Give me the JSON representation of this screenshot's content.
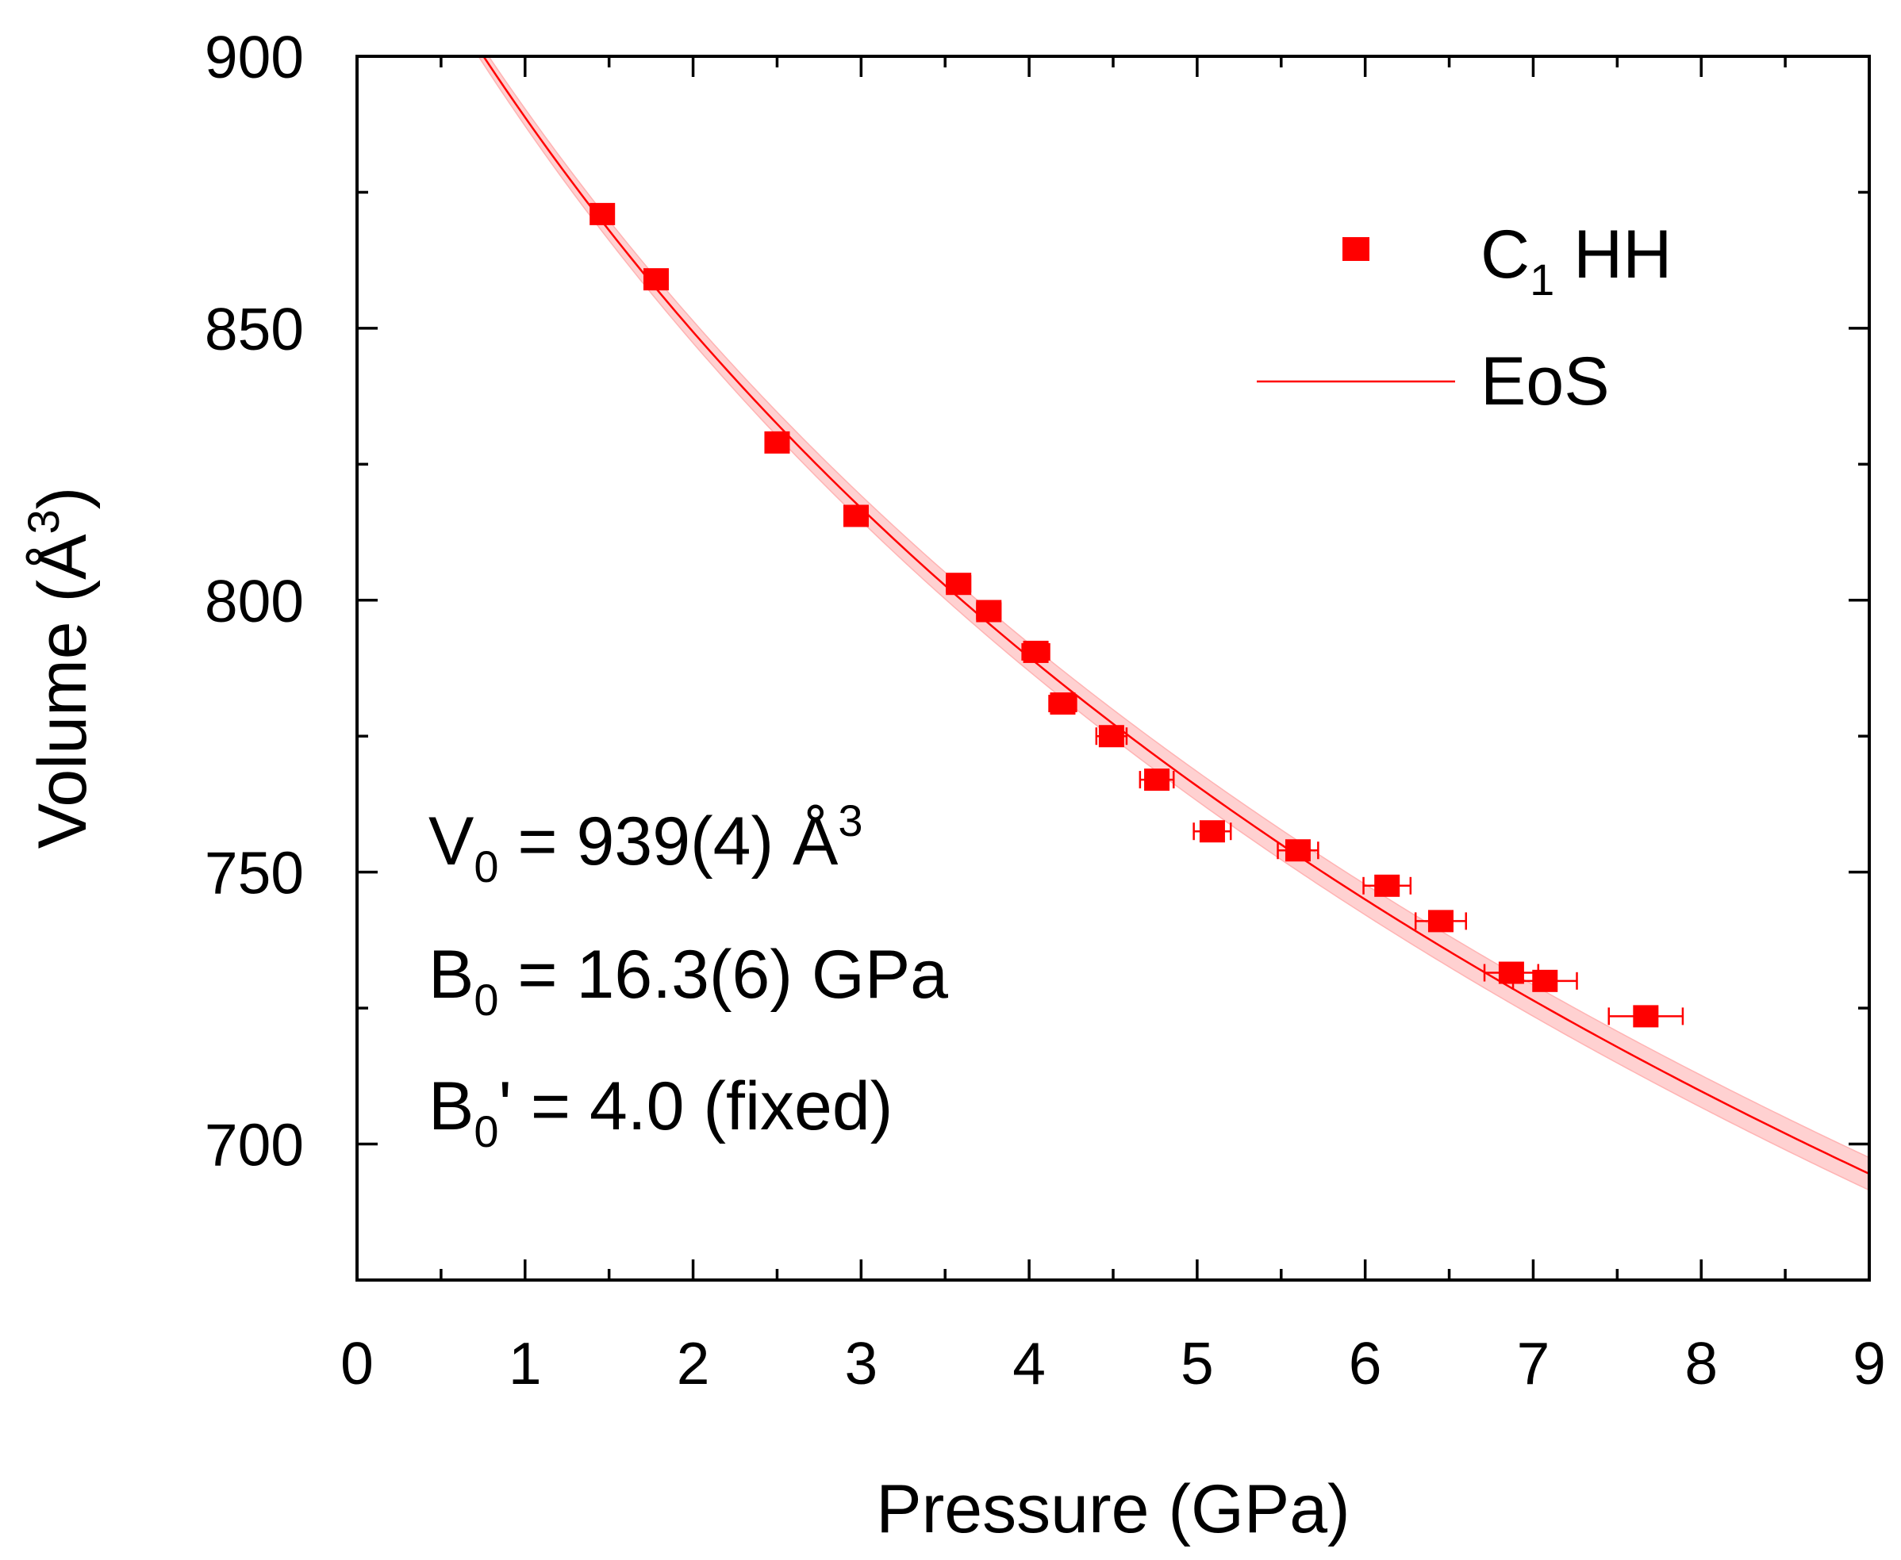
{
  "chart_data": {
    "type": "scatter",
    "title": "",
    "xlabel": "Pressure (GPa)",
    "ylabel": {
      "main": "Volume (Å",
      "sup": "3",
      "close": ")"
    },
    "xlim": [
      0,
      9
    ],
    "ylim": [
      675,
      900
    ],
    "x_ticks": [
      0,
      1,
      2,
      3,
      4,
      5,
      6,
      7,
      8,
      9
    ],
    "y_ticks": [
      700,
      750,
      800,
      850,
      900
    ],
    "legend_position": "top-right",
    "series": [
      {
        "name": "C1 HH",
        "legend_label": {
          "main": "C",
          "sub": "1",
          "rest": " HH"
        },
        "kind": "scatter",
        "marker": "square",
        "color": "#ff0000",
        "points": [
          {
            "x": 1.46,
            "y": 871.0,
            "xerr": 0.05
          },
          {
            "x": 1.78,
            "y": 859.0,
            "xerr": 0.05
          },
          {
            "x": 2.5,
            "y": 829.0,
            "xerr": 0.06
          },
          {
            "x": 2.97,
            "y": 815.5,
            "xerr": 0.06
          },
          {
            "x": 3.58,
            "y": 803.0,
            "xerr": 0.07
          },
          {
            "x": 3.76,
            "y": 798.0,
            "xerr": 0.07
          },
          {
            "x": 4.04,
            "y": 790.5,
            "xerr": 0.08
          },
          {
            "x": 4.2,
            "y": 781.0,
            "xerr": 0.08
          },
          {
            "x": 4.49,
            "y": 775.0,
            "xerr": 0.09
          },
          {
            "x": 4.76,
            "y": 767.0,
            "xerr": 0.1
          },
          {
            "x": 5.09,
            "y": 757.5,
            "xerr": 0.11
          },
          {
            "x": 5.6,
            "y": 754.0,
            "xerr": 0.12
          },
          {
            "x": 6.13,
            "y": 747.5,
            "xerr": 0.14
          },
          {
            "x": 6.45,
            "y": 741.0,
            "xerr": 0.15
          },
          {
            "x": 6.87,
            "y": 731.5,
            "xerr": 0.16
          },
          {
            "x": 7.07,
            "y": 730.0,
            "xerr": 0.19
          },
          {
            "x": 7.67,
            "y": 723.5,
            "xerr": 0.22
          }
        ]
      },
      {
        "name": "EoS",
        "legend_label": {
          "main": "EoS"
        },
        "kind": "line",
        "model": "Birch-Murnaghan 3rd order",
        "V0": 939,
        "B0": 16.3,
        "B0prime": 4.0,
        "color": "#ff0000",
        "band_color": "#ffb3b3"
      }
    ],
    "annotations": [
      {
        "main": "V",
        "sub": "0",
        "rest": " = 939(4) Å",
        "sup": "3"
      },
      {
        "main": "B",
        "sub": "0",
        "rest": " = 16.3(6) GPa",
        "sup": ""
      },
      {
        "main": "B",
        "sub": "0",
        "rest": "' = 4.0 (fixed)",
        "sup": ""
      }
    ]
  }
}
